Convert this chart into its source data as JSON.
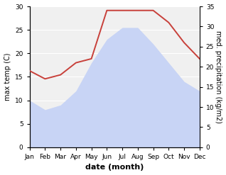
{
  "months": [
    "Jan",
    "Feb",
    "Mar",
    "Apr",
    "May",
    "Jun",
    "Jul",
    "Aug",
    "Sep",
    "Oct",
    "Nov",
    "Dec"
  ],
  "max_temp": [
    10,
    8,
    9,
    12,
    18,
    23,
    25.5,
    25.5,
    22,
    18,
    14,
    12
  ],
  "precipitation": [
    19,
    17,
    18,
    21,
    22,
    34,
    34,
    34,
    34,
    31,
    26,
    22
  ],
  "temp_ylim": [
    0,
    30
  ],
  "precip_ylim": [
    0,
    35
  ],
  "temp_fill_color": "#c8d4f5",
  "precip_line_color": "#c8403a",
  "left_ylabel": "max temp (C)",
  "right_ylabel": "med. precipitation (kg/m2)",
  "xlabel": "date (month)",
  "temp_yticks": [
    0,
    5,
    10,
    15,
    20,
    25,
    30
  ],
  "precip_yticks": [
    0,
    5,
    10,
    15,
    20,
    25,
    30,
    35
  ],
  "plot_bg_color": "#f0f0f0",
  "fig_bg_color": "#ffffff",
  "grid_color": "#ffffff",
  "ylabel_fontsize": 7,
  "xlabel_fontsize": 8,
  "tick_fontsize": 6.5,
  "line_width": 1.4
}
